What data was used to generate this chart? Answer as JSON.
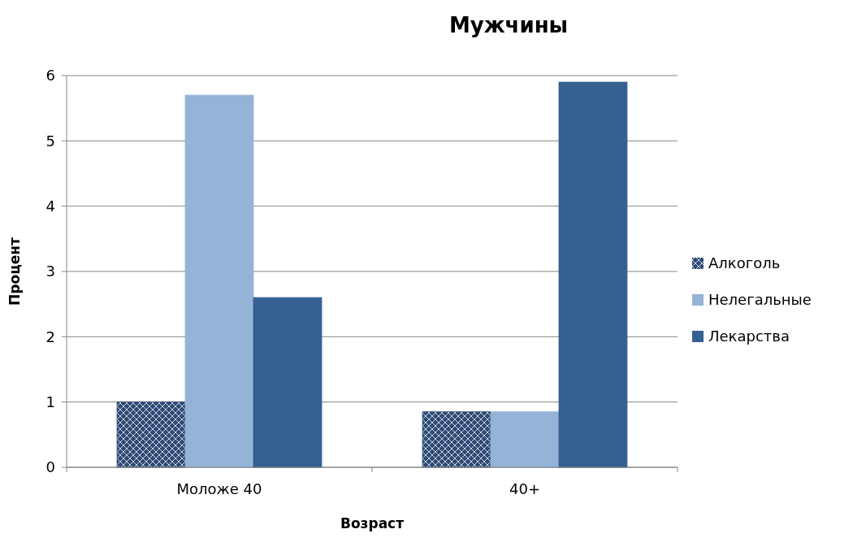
{
  "chart_data": {
    "type": "bar",
    "title": "Мужчины",
    "xlabel": "Возраст",
    "ylabel": "Процент",
    "categories": [
      "Моложе 40",
      "40+"
    ],
    "series": [
      {
        "name": "Алкоголь",
        "color": "#2f4b73",
        "values": [
          1.0,
          0.85
        ]
      },
      {
        "name": "Нелегальные",
        "color": "#95b3d7",
        "values": [
          5.7,
          0.85
        ]
      },
      {
        "name": "Лекарства",
        "color": "#366092",
        "values": [
          2.6,
          5.9
        ]
      }
    ],
    "ylim": [
      0,
      6
    ],
    "yticks": [
      0,
      1,
      2,
      3,
      4,
      5,
      6
    ],
    "grid": "y",
    "legend": "right"
  }
}
